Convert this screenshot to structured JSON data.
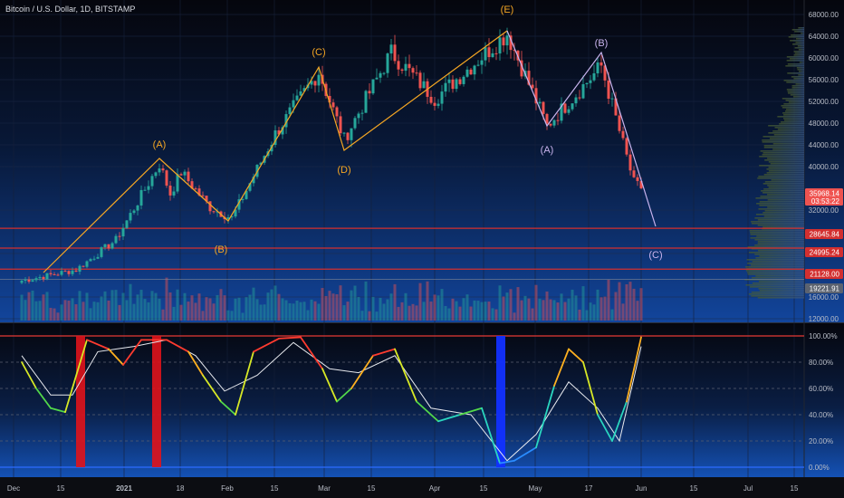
{
  "header": {
    "title": "Bitcoin / U.S. Dollar, 1D, BITSTAMP"
  },
  "colors": {
    "up": "#26a69a",
    "down": "#ef5350",
    "orange": "#f5a623",
    "violet": "#c9b4ee",
    "level": "#d32f2f"
  },
  "chart_data": [
    {
      "type": "candlestick",
      "title": "Bitcoin / U.S. Dollar, 1D, BITSTAMP",
      "y_ticks": [
        "68000.00",
        "64000.00",
        "60000.00",
        "56000.00",
        "52000.00",
        "48000.00",
        "44000.00",
        "40000.00",
        "32000.00",
        "24000.00",
        "16000.00",
        "12000.00"
      ],
      "x_ticks": [
        "Dec",
        "15",
        "2021",
        "18",
        "Feb",
        "15",
        "Mar",
        "15",
        "Apr",
        "15",
        "May",
        "17",
        "Jun",
        "15",
        "Jul",
        "15"
      ],
      "ohlc_anchors": [
        {
          "date": "2020-12-01",
          "close": 19000
        },
        {
          "date": "2020-12-16",
          "close": 21000
        },
        {
          "date": "2020-12-27",
          "close": 26500
        },
        {
          "date": "2021-01-08",
          "close": 40500
        },
        {
          "date": "2021-01-11",
          "close": 35000
        },
        {
          "date": "2021-01-14",
          "close": 39000
        },
        {
          "date": "2021-01-22",
          "close": 32500
        },
        {
          "date": "2021-01-28",
          "close": 30500
        },
        {
          "date": "2021-02-09",
          "close": 46000
        },
        {
          "date": "2021-02-21",
          "close": 57500
        },
        {
          "date": "2021-02-28",
          "close": 45000
        },
        {
          "date": "2021-03-13",
          "close": 61000
        },
        {
          "date": "2021-03-25",
          "close": 52500
        },
        {
          "date": "2021-04-14",
          "close": 64500
        },
        {
          "date": "2021-04-25",
          "close": 47500
        },
        {
          "date": "2021-05-10",
          "close": 58500
        },
        {
          "date": "2021-05-19",
          "close": 37000
        },
        {
          "date": "2021-05-21",
          "close": 36000
        }
      ],
      "price_labels": [
        {
          "value": "35968.14",
          "sub": "03:53:22",
          "color": "#ef5350"
        },
        {
          "value": "28645.84",
          "color": "#d32f2f"
        },
        {
          "value": "24995.24",
          "color": "#d32f2f"
        },
        {
          "value": "21128.00",
          "color": "#d32f2f"
        },
        {
          "value": "19221.91",
          "color": "#5c6370"
        }
      ],
      "horizontal_levels": [
        28645.84,
        24995.24,
        21128.0,
        19221.91
      ],
      "annotations": [
        {
          "text": "(A)",
          "date": "2021-01-08",
          "price": 43500,
          "color": "orange"
        },
        {
          "text": "(B)",
          "date": "2021-01-25",
          "price": 24200,
          "color": "orange"
        },
        {
          "text": "(C)",
          "date": "2021-02-21",
          "price": 60500,
          "color": "orange"
        },
        {
          "text": "(D)",
          "date": "2021-02-28",
          "price": 38800,
          "color": "orange"
        },
        {
          "text": "(E)",
          "date": "2021-04-14",
          "price": 68300,
          "color": "orange"
        },
        {
          "text": "(A)",
          "date": "2021-04-25",
          "price": 42500,
          "color": "violet"
        },
        {
          "text": "(B)",
          "date": "2021-05-10",
          "price": 62200,
          "color": "violet"
        },
        {
          "text": "(C)",
          "date": "2021-05-25",
          "price": 23200,
          "color": "violet"
        }
      ]
    },
    {
      "type": "line",
      "title": "",
      "y_ticks": [
        "100.00%",
        "80.00%",
        "60.00%",
        "40.00%",
        "20.00%",
        "0.00%"
      ],
      "ylim": [
        0,
        100
      ],
      "fast": [
        {
          "date": "2020-12-01",
          "value": 80
        },
        {
          "date": "2020-12-05",
          "value": 60
        },
        {
          "date": "2020-12-09",
          "value": 45
        },
        {
          "date": "2020-12-13",
          "value": 42
        },
        {
          "date": "2020-12-19",
          "value": 97
        },
        {
          "date": "2020-12-25",
          "value": 90
        },
        {
          "date": "2020-12-29",
          "value": 78
        },
        {
          "date": "2021-01-03",
          "value": 97
        },
        {
          "date": "2021-01-10",
          "value": 97
        },
        {
          "date": "2021-01-16",
          "value": 88
        },
        {
          "date": "2021-01-20",
          "value": 70
        },
        {
          "date": "2021-01-25",
          "value": 50
        },
        {
          "date": "2021-01-29",
          "value": 40
        },
        {
          "date": "2021-02-03",
          "value": 88
        },
        {
          "date": "2021-02-10",
          "value": 98
        },
        {
          "date": "2021-02-16",
          "value": 99
        },
        {
          "date": "2021-02-22",
          "value": 75
        },
        {
          "date": "2021-02-26",
          "value": 50
        },
        {
          "date": "2021-03-02",
          "value": 60
        },
        {
          "date": "2021-03-08",
          "value": 85
        },
        {
          "date": "2021-03-14",
          "value": 90
        },
        {
          "date": "2021-03-20",
          "value": 50
        },
        {
          "date": "2021-03-26",
          "value": 35
        },
        {
          "date": "2021-04-01",
          "value": 40
        },
        {
          "date": "2021-04-07",
          "value": 45
        },
        {
          "date": "2021-04-12",
          "value": 3
        },
        {
          "date": "2021-04-16",
          "value": 5
        },
        {
          "date": "2021-04-22",
          "value": 15
        },
        {
          "date": "2021-04-27",
          "value": 62
        },
        {
          "date": "2021-05-01",
          "value": 90
        },
        {
          "date": "2021-05-05",
          "value": 80
        },
        {
          "date": "2021-05-09",
          "value": 40
        },
        {
          "date": "2021-05-13",
          "value": 20
        },
        {
          "date": "2021-05-17",
          "value": 50
        },
        {
          "date": "2021-05-21",
          "value": 99
        }
      ],
      "slow": [
        {
          "date": "2020-12-01",
          "value": 85
        },
        {
          "date": "2020-12-09",
          "value": 55
        },
        {
          "date": "2020-12-15",
          "value": 55
        },
        {
          "date": "2020-12-22",
          "value": 88
        },
        {
          "date": "2021-01-01",
          "value": 92
        },
        {
          "date": "2021-01-10",
          "value": 97
        },
        {
          "date": "2021-01-18",
          "value": 85
        },
        {
          "date": "2021-01-26",
          "value": 58
        },
        {
          "date": "2021-02-04",
          "value": 70
        },
        {
          "date": "2021-02-14",
          "value": 95
        },
        {
          "date": "2021-02-24",
          "value": 75
        },
        {
          "date": "2021-03-04",
          "value": 72
        },
        {
          "date": "2021-03-14",
          "value": 85
        },
        {
          "date": "2021-03-24",
          "value": 45
        },
        {
          "date": "2021-04-04",
          "value": 40
        },
        {
          "date": "2021-04-14",
          "value": 5
        },
        {
          "date": "2021-04-22",
          "value": 25
        },
        {
          "date": "2021-05-01",
          "value": 65
        },
        {
          "date": "2021-05-09",
          "value": 45
        },
        {
          "date": "2021-05-15",
          "value": 20
        },
        {
          "date": "2021-05-21",
          "value": 92
        }
      ],
      "red_zones": [
        {
          "start": "2020-12-16",
          "end": "2020-12-18"
        },
        {
          "start": "2021-01-06",
          "end": "2021-01-08"
        }
      ],
      "blue_zones": [
        {
          "start": "2021-04-11",
          "end": "2021-04-13"
        }
      ]
    }
  ]
}
